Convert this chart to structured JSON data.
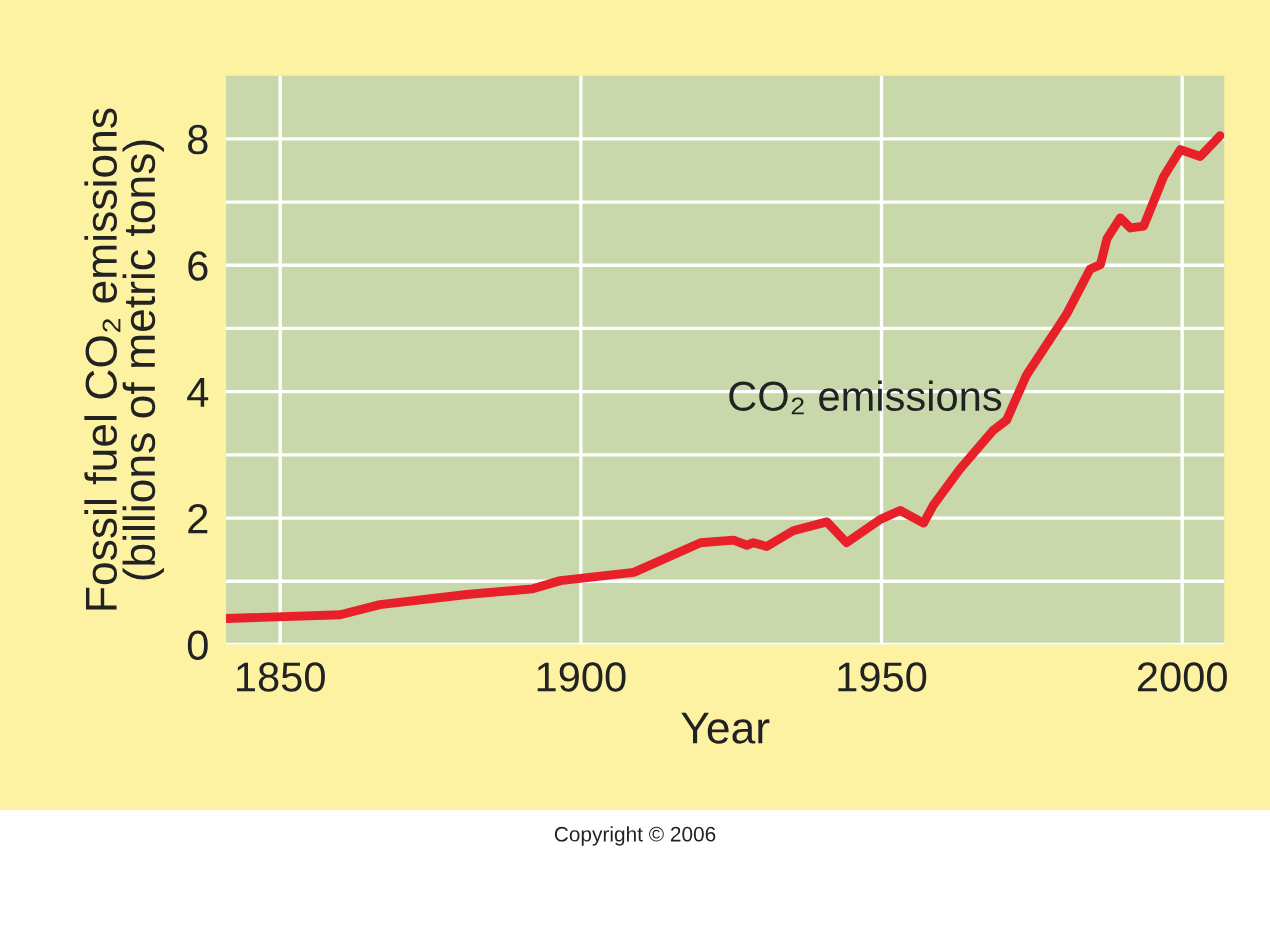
{
  "chart_data": {
    "type": "line",
    "xlabel": "Year",
    "ylabel": "Fossil fuel CO₂ emissions\n(billions of metric tons)",
    "xlim": [
      1841,
      2007
    ],
    "xticks": [
      1850,
      1900,
      1950,
      2000
    ],
    "ylim": [
      0,
      9
    ],
    "yticks": [
      0,
      {
        "value": 1,
        "label": null
      },
      2,
      {
        "value": 3,
        "label": null
      },
      4,
      {
        "value": 5,
        "label": null
      },
      6,
      {
        "value": 7,
        "label": null
      },
      8
    ],
    "grid": true,
    "legend": false,
    "series": [
      {
        "name": "CO₂ emissions",
        "color": "#e8202a",
        "x": [
          1841,
          1860,
          1866.6,
          1881,
          1892,
          1896.6,
          1908.8,
          1919.9,
          1925.4,
          1927.6,
          1928.7,
          1930.9,
          1935.3,
          1940.9,
          1944.2,
          1949.8,
          1953.1,
          1957,
          1958.6,
          1963,
          1968.6,
          1970.8,
          1974.1,
          1980.8,
          1984.7,
          1986.4,
          1987.5,
          1989.7,
          1991.4,
          1993.6,
          1996.9,
          1999.7,
          2003,
          2006.3
        ],
        "values": [
          0.41,
          0.47,
          0.63,
          0.79,
          0.88,
          1.01,
          1.14,
          1.61,
          1.65,
          1.57,
          1.61,
          1.55,
          1.8,
          1.94,
          1.61,
          1.98,
          2.12,
          1.92,
          2.2,
          2.77,
          3.39,
          3.55,
          4.26,
          5.23,
          5.94,
          6.01,
          6.42,
          6.75,
          6.59,
          6.62,
          7.4,
          7.83,
          7.72,
          8.05
        ]
      }
    ],
    "annotations": [
      "Copyright © 2006"
    ]
  }
}
